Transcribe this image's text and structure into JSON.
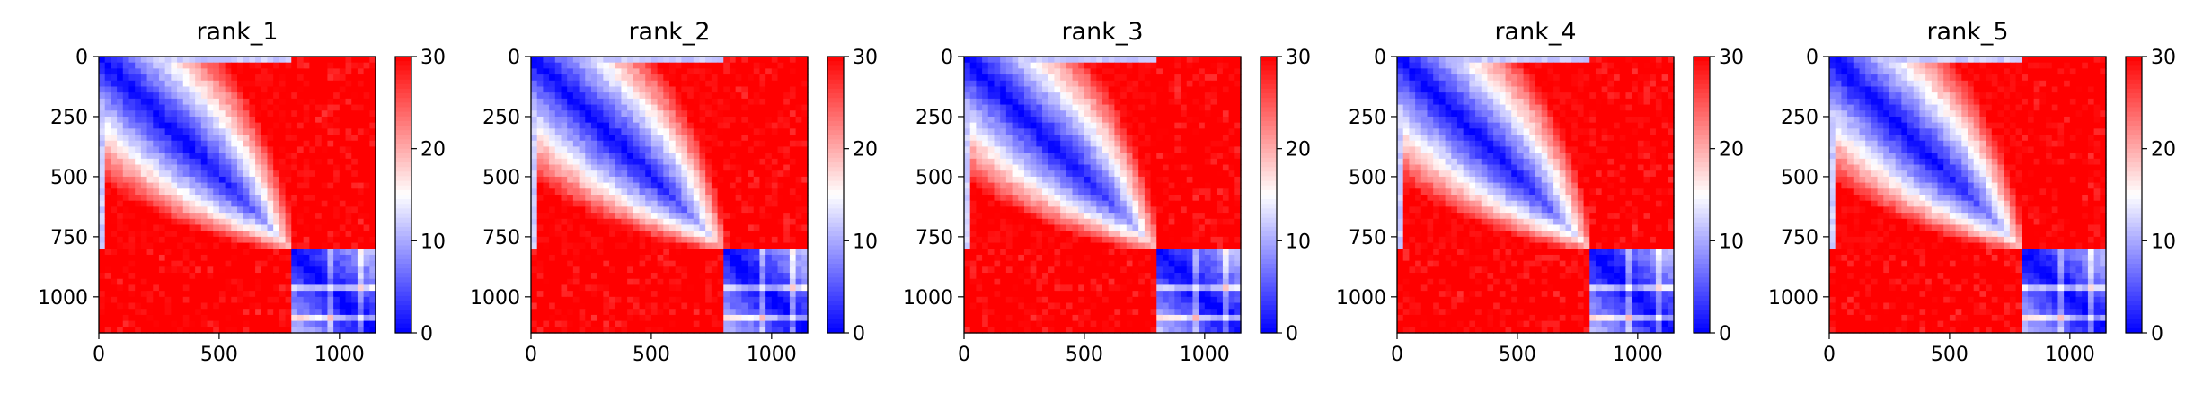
{
  "chart_data": [
    {
      "type": "heatmap",
      "title": "rank_1",
      "xlim": [
        0,
        1150
      ],
      "ylim": [
        1150,
        0
      ],
      "x_ticks": [
        0,
        500,
        1000
      ],
      "y_ticks": [
        0,
        250,
        500,
        750,
        1000
      ],
      "colorbar": {
        "min": 0,
        "max": 30,
        "ticks": [
          0,
          10,
          20,
          30
        ],
        "colormap": "bwr"
      },
      "block_boundary": 800,
      "description_values": {
        "diag_low": 0,
        "first_block_corner": 30,
        "cross_block": 30
      }
    },
    {
      "type": "heatmap",
      "title": "rank_2",
      "xlim": [
        0,
        1150
      ],
      "ylim": [
        1150,
        0
      ],
      "x_ticks": [
        0,
        500,
        1000
      ],
      "y_ticks": [
        0,
        250,
        500,
        750,
        1000
      ],
      "colorbar": {
        "min": 0,
        "max": 30,
        "ticks": [
          0,
          10,
          20,
          30
        ],
        "colormap": "bwr"
      },
      "block_boundary": 800,
      "description_values": {
        "diag_low": 0,
        "first_block_corner": 30,
        "cross_block": 30
      }
    },
    {
      "type": "heatmap",
      "title": "rank_3",
      "xlim": [
        0,
        1150
      ],
      "ylim": [
        1150,
        0
      ],
      "x_ticks": [
        0,
        500,
        1000
      ],
      "y_ticks": [
        0,
        250,
        500,
        750,
        1000
      ],
      "colorbar": {
        "min": 0,
        "max": 30,
        "ticks": [
          0,
          10,
          20,
          30
        ],
        "colormap": "bwr"
      },
      "block_boundary": 800,
      "description_values": {
        "diag_low": 0,
        "first_block_corner": 30,
        "cross_block": 30
      }
    },
    {
      "type": "heatmap",
      "title": "rank_4",
      "xlim": [
        0,
        1150
      ],
      "ylim": [
        1150,
        0
      ],
      "x_ticks": [
        0,
        500,
        1000
      ],
      "y_ticks": [
        0,
        250,
        500,
        750,
        1000
      ],
      "colorbar": {
        "min": 0,
        "max": 30,
        "ticks": [
          0,
          10,
          20,
          30
        ],
        "colormap": "bwr"
      },
      "block_boundary": 800,
      "description_values": {
        "diag_low": 0,
        "first_block_corner": 30,
        "cross_block": 30
      }
    },
    {
      "type": "heatmap",
      "title": "rank_5",
      "xlim": [
        0,
        1150
      ],
      "ylim": [
        1150,
        0
      ],
      "x_ticks": [
        0,
        500,
        1000
      ],
      "y_ticks": [
        0,
        250,
        500,
        750,
        1000
      ],
      "colorbar": {
        "min": 0,
        "max": 30,
        "ticks": [
          0,
          10,
          20,
          30
        ],
        "colormap": "bwr"
      },
      "block_boundary": 800,
      "description_values": {
        "diag_low": 0,
        "first_block_corner": 30,
        "cross_block": 30
      }
    }
  ],
  "colors": {
    "low": "#0000ff",
    "mid": "#ffffff",
    "high": "#ff0000"
  }
}
